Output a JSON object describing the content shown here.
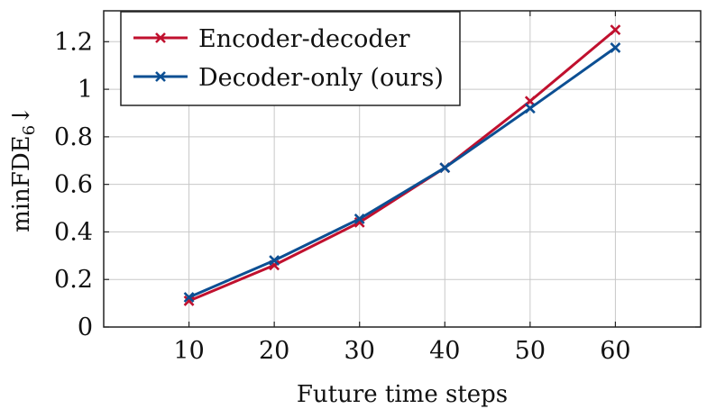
{
  "chart_data": {
    "type": "line",
    "x": [
      10,
      20,
      30,
      40,
      50,
      60
    ],
    "series": [
      {
        "name": "Encoder-decoder",
        "values": [
          0.11,
          0.26,
          0.44,
          0.67,
          0.95,
          1.25
        ],
        "color": "#c0102e",
        "marker": "x"
      },
      {
        "name": "Decoder-only (ours)",
        "values": [
          0.125,
          0.28,
          0.455,
          0.67,
          0.92,
          1.175
        ],
        "color": "#0c4f93",
        "marker": "x"
      }
    ],
    "xlabel": "Future time steps",
    "ylabel_main": "minFDE",
    "ylabel_sub": "6",
    "ylabel_arrow": "↓",
    "xlim": [
      0,
      70
    ],
    "ylim": [
      0,
      1.33
    ],
    "xticks": [
      10,
      20,
      30,
      40,
      50,
      60
    ],
    "yticks": [
      0,
      0.2,
      0.4,
      0.6,
      0.8,
      1,
      1.2
    ],
    "ytick_labels": [
      "0",
      "0.2",
      "0.4",
      "0.6",
      "0.8",
      "1",
      "1.2"
    ],
    "grid": true,
    "legend_position": "top-left"
  }
}
